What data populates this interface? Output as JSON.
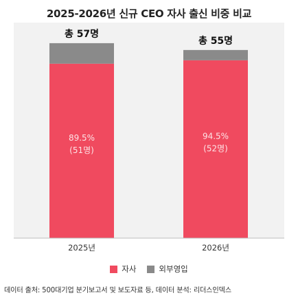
{
  "title": "2025-2026년 신규 CEO 자사 출신 비중 비교",
  "chart_data": {
    "type": "bar",
    "stacked": true,
    "categories": [
      "2025년",
      "2026년"
    ],
    "totals": [
      57,
      55
    ],
    "total_labels": [
      "총 57명",
      "총 55명"
    ],
    "series": [
      {
        "name": "자사",
        "color": "#f04a5f",
        "values": [
          51,
          52
        ],
        "percent_labels": [
          "89.5%",
          "94.5%"
        ],
        "count_labels": [
          "(51명)",
          "(52명)"
        ]
      },
      {
        "name": "외부영입",
        "color": "#8a8a8a",
        "values": [
          6,
          3
        ]
      }
    ],
    "ylim": [
      0,
      63
    ],
    "grid": false,
    "legend_position": "bottom"
  },
  "source": "데이터 출처: 500대기업 분기보고서 및 보도자료 등, 데이터 분석: 리더스인덱스"
}
